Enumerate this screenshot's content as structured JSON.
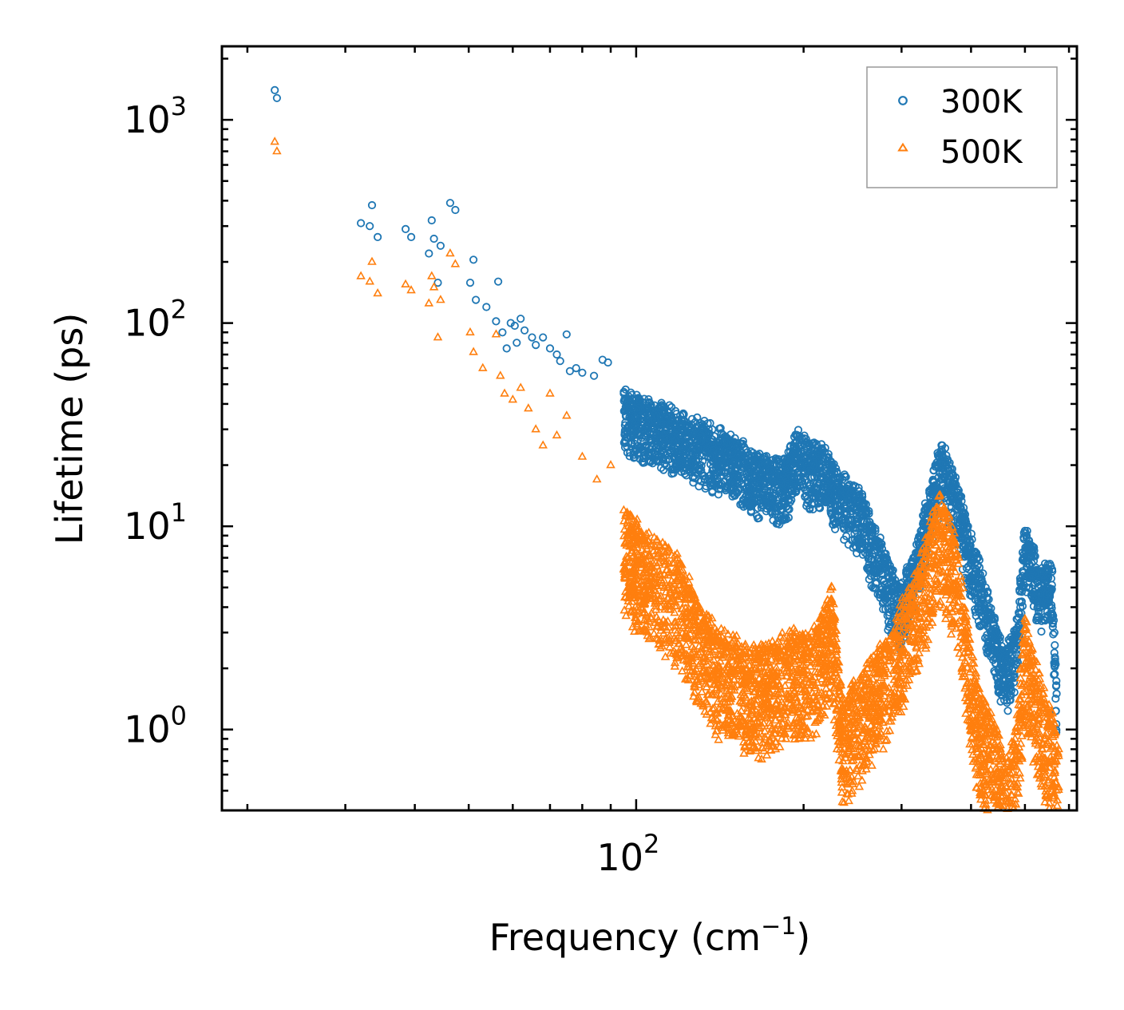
{
  "chart_data": {
    "type": "scatter",
    "scale": {
      "x": "log",
      "y": "log"
    },
    "xlabel": "Frequency (cm",
    "xlabel_superscript": "−1",
    "xlabel_suffix": ")",
    "ylabel": "Lifetime (ps)",
    "xlim": [
      18,
      620
    ],
    "ylim": [
      0.4,
      2300
    ],
    "x_ticks": [
      {
        "value": 100,
        "base": "10",
        "exp": "2"
      }
    ],
    "y_ticks": [
      {
        "value": 1,
        "base": "10",
        "exp": "0"
      },
      {
        "value": 10,
        "base": "10",
        "exp": "1"
      },
      {
        "value": 100,
        "base": "10",
        "exp": "2"
      },
      {
        "value": 1000,
        "base": "10",
        "exp": "3"
      }
    ],
    "legend_position": "top-right",
    "series": [
      {
        "name": "300K",
        "color": "#1f77b4",
        "marker": "circle",
        "key_points": [
          [
            22.4,
            1400
          ],
          [
            22.6,
            1280
          ],
          [
            32.0,
            310
          ],
          [
            33.5,
            380
          ],
          [
            33.2,
            300
          ],
          [
            34.3,
            265
          ],
          [
            38.5,
            290
          ],
          [
            39.4,
            265
          ],
          [
            42.4,
            220
          ],
          [
            42.9,
            320
          ],
          [
            43.3,
            260
          ],
          [
            44.0,
            158
          ],
          [
            44.5,
            240
          ],
          [
            46.3,
            390
          ],
          [
            47.3,
            360
          ],
          [
            50.3,
            158
          ],
          [
            51.0,
            205
          ],
          [
            51.5,
            130
          ],
          [
            53.8,
            120
          ],
          [
            56.0,
            102
          ],
          [
            56.5,
            160
          ],
          [
            57.5,
            90
          ],
          [
            58.5,
            75
          ],
          [
            59.5,
            100
          ],
          [
            60.5,
            97
          ],
          [
            61.0,
            80
          ],
          [
            62.0,
            105
          ],
          [
            63.0,
            92
          ],
          [
            65.0,
            85
          ],
          [
            66.0,
            78
          ],
          [
            68.0,
            85
          ],
          [
            70.0,
            75
          ],
          [
            72.0,
            70
          ],
          [
            73.0,
            65
          ],
          [
            75.0,
            88
          ],
          [
            76.0,
            58
          ],
          [
            78.0,
            60
          ],
          [
            80.0,
            57
          ],
          [
            84.0,
            55
          ],
          [
            87.0,
            66
          ],
          [
            89.0,
            64
          ],
          [
            95.0,
            45
          ],
          [
            100.0,
            42
          ],
          [
            110.0,
            38
          ],
          [
            120.0,
            35
          ],
          [
            135.0,
            30
          ],
          [
            150.0,
            26
          ],
          [
            165.0,
            22
          ],
          [
            185.0,
            20
          ],
          [
            195.0,
            28
          ],
          [
            205.0,
            25
          ],
          [
            215.0,
            24
          ],
          [
            225.0,
            20
          ],
          [
            235.0,
            17
          ],
          [
            245.0,
            15
          ],
          [
            255.0,
            14
          ],
          [
            265.0,
            10
          ],
          [
            275.0,
            8
          ],
          [
            285.0,
            6
          ],
          [
            300.0,
            5
          ],
          [
            315.0,
            7
          ],
          [
            330.0,
            12
          ],
          [
            345.0,
            20
          ],
          [
            355.0,
            25
          ],
          [
            365.0,
            20
          ],
          [
            380.0,
            15
          ],
          [
            395.0,
            10
          ],
          [
            410.0,
            7
          ],
          [
            425.0,
            5
          ],
          [
            440.0,
            3.5
          ],
          [
            460.0,
            2.3
          ],
          [
            480.0,
            3
          ],
          [
            500.0,
            9.5
          ],
          [
            515.0,
            8
          ],
          [
            530.0,
            6
          ],
          [
            550.0,
            6.5
          ],
          [
            560.0,
            6
          ],
          [
            565.0,
            3
          ],
          [
            570.0,
            1.5
          ]
        ]
      },
      {
        "name": "500K",
        "color": "#ff7f0e",
        "marker": "triangle",
        "key_points": [
          [
            22.4,
            780
          ],
          [
            22.6,
            700
          ],
          [
            32.0,
            170
          ],
          [
            33.5,
            200
          ],
          [
            33.2,
            160
          ],
          [
            34.3,
            140
          ],
          [
            38.5,
            155
          ],
          [
            39.4,
            145
          ],
          [
            42.4,
            125
          ],
          [
            42.9,
            170
          ],
          [
            43.3,
            150
          ],
          [
            44.0,
            85
          ],
          [
            44.5,
            130
          ],
          [
            46.3,
            220
          ],
          [
            47.3,
            195
          ],
          [
            50.3,
            90
          ],
          [
            51.0,
            72
          ],
          [
            53.0,
            60
          ],
          [
            56.0,
            88
          ],
          [
            57.0,
            55
          ],
          [
            58.0,
            45
          ],
          [
            60.0,
            42
          ],
          [
            62.0,
            48
          ],
          [
            64.0,
            38
          ],
          [
            66.0,
            30
          ],
          [
            68.0,
            25
          ],
          [
            70.0,
            45
          ],
          [
            72.0,
            28
          ],
          [
            75.0,
            35
          ],
          [
            80.0,
            22
          ],
          [
            85.0,
            17
          ],
          [
            90.0,
            20
          ],
          [
            95.0,
            12
          ],
          [
            100.0,
            10
          ],
          [
            110.0,
            8
          ],
          [
            120.0,
            6.5
          ],
          [
            130.0,
            4
          ],
          [
            140.0,
            3
          ],
          [
            150.0,
            2.8
          ],
          [
            160.0,
            2.4
          ],
          [
            175.0,
            2.5
          ],
          [
            190.0,
            3
          ],
          [
            205.0,
            2.8
          ],
          [
            215.0,
            3.5
          ],
          [
            225.0,
            5
          ],
          [
            235.0,
            1.3
          ],
          [
            245.0,
            1.6
          ],
          [
            260.0,
            2
          ],
          [
            275.0,
            2.5
          ],
          [
            290.0,
            3
          ],
          [
            305.0,
            4.5
          ],
          [
            320.0,
            6
          ],
          [
            335.0,
            9
          ],
          [
            350.0,
            14
          ],
          [
            365.0,
            11
          ],
          [
            380.0,
            7
          ],
          [
            395.0,
            3
          ],
          [
            410.0,
            1.6
          ],
          [
            430.0,
            1.2
          ],
          [
            445.0,
            1
          ],
          [
            460.0,
            0.65
          ],
          [
            480.0,
            0.9
          ],
          [
            500.0,
            3.5
          ],
          [
            520.0,
            2.2
          ],
          [
            540.0,
            1.5
          ],
          [
            560.0,
            1.2
          ],
          [
            575.0,
            0.8
          ]
        ]
      }
    ]
  }
}
